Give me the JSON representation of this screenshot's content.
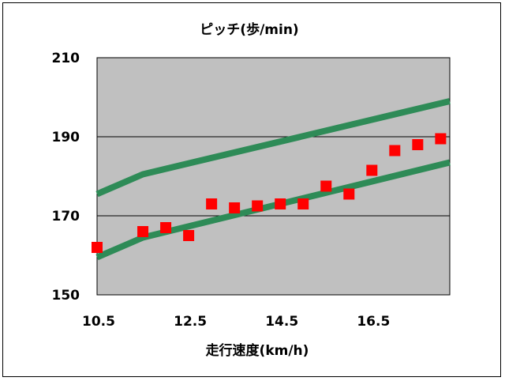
{
  "chart_data": {
    "type": "line",
    "title": "ピッチ(歩/min)",
    "xlabel": "走行速度(km/h)",
    "ylabel": "",
    "xlim": [
      10.5,
      18.2
    ],
    "ylim": [
      150,
      210
    ],
    "x_ticks": [
      "10.5",
      "12.5",
      "14.5",
      "16.5"
    ],
    "x_tick_values": [
      10.5,
      12.5,
      14.5,
      16.5
    ],
    "y_ticks": [
      "210",
      "190",
      "170",
      "150"
    ],
    "y_tick_values": [
      210,
      190,
      170,
      150
    ],
    "grid": "horizontal",
    "plot_background": "#c0c0c0",
    "series": [
      {
        "kind": "line",
        "color": "#2e8b57",
        "x": [
          10.5,
          11.5,
          18.2
        ],
        "y": [
          175.5,
          180.5,
          199
        ]
      },
      {
        "kind": "line",
        "color": "#2e8b57",
        "x": [
          10.5,
          11.5,
          18.2
        ],
        "y": [
          159.5,
          164.5,
          183.5
        ]
      },
      {
        "kind": "scatter",
        "color": "#ff0000",
        "marker": "square",
        "x": [
          10.5,
          11.5,
          12.0,
          12.5,
          13.0,
          13.5,
          14.0,
          14.5,
          15.0,
          15.5,
          16.0,
          16.5,
          17.0,
          17.5,
          18.0
        ],
        "y": [
          162,
          166,
          167,
          165,
          173,
          172,
          172.5,
          173,
          173,
          177.5,
          175.5,
          181.5,
          186.5,
          188,
          189.5
        ]
      }
    ]
  }
}
